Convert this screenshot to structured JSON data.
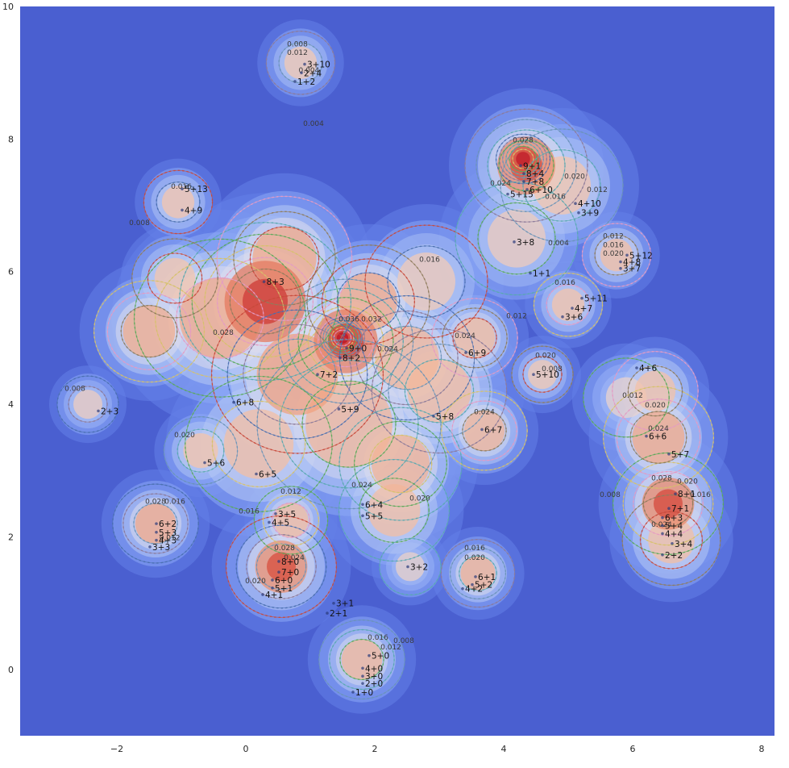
{
  "chart_data": {
    "type": "contour",
    "title": "",
    "xlabel": "",
    "ylabel": "",
    "xlim": [
      -3.5,
      8.2
    ],
    "ylim": [
      -1.0,
      10.0
    ],
    "grid": false,
    "legend": "none",
    "colormap": "coolwarm",
    "x_ticks": [
      "−2",
      "0",
      "2",
      "4",
      "6",
      "8"
    ],
    "x_tick_values": [
      -2,
      0,
      2,
      4,
      6,
      8
    ],
    "y_ticks": [
      "0",
      "2",
      "4",
      "6",
      "8",
      "10"
    ],
    "y_tick_values": [
      0,
      2,
      4,
      6,
      8,
      10
    ],
    "contour_levels": [
      "0.004",
      "0.008",
      "0.012",
      "0.016",
      "0.020",
      "0.024",
      "0.028",
      "0.032",
      "0.036"
    ],
    "level_colors": [
      "#8c7a9a",
      "#6a94b8",
      "#59a9b0",
      "#5aaa5a",
      "#d6c26a",
      "#e49bc4",
      "#8f7c5d",
      "#c84a3c",
      "#4a6fb0"
    ],
    "colors": {
      "background": "#4a5fd0",
      "low": "#6f8ff0",
      "mid": "#dcdcec",
      "high": "#f0a080",
      "peak": "#c01828"
    },
    "level_labels": [
      {
        "text": "0.004",
        "x": 1.05,
        "y": 8.2
      },
      {
        "text": "0.004",
        "x": 0.98,
        "y": 9.0
      },
      {
        "text": "0.008",
        "x": 0.8,
        "y": 9.4
      },
      {
        "text": "0.012",
        "x": 0.8,
        "y": 9.27
      },
      {
        "text": "0.008",
        "x": -1.65,
        "y": 6.7
      },
      {
        "text": "0.016",
        "x": -1.0,
        "y": 7.25
      },
      {
        "text": "0.028",
        "x": -0.35,
        "y": 5.05
      },
      {
        "text": "0.036",
        "x": 1.6,
        "y": 5.25
      },
      {
        "text": "0.032",
        "x": 1.95,
        "y": 5.25
      },
      {
        "text": "0.024",
        "x": 2.2,
        "y": 4.8
      },
      {
        "text": "0.016",
        "x": 2.85,
        "y": 6.15
      },
      {
        "text": "0.024",
        "x": 3.4,
        "y": 5.0
      },
      {
        "text": "0.008",
        "x": -2.65,
        "y": 4.2
      },
      {
        "text": "0.020",
        "x": -0.95,
        "y": 3.5
      },
      {
        "text": "0.024",
        "x": 1.8,
        "y": 2.75
      },
      {
        "text": "0.020",
        "x": 2.7,
        "y": 2.55
      },
      {
        "text": "0.012",
        "x": 0.7,
        "y": 2.65
      },
      {
        "text": "0.016",
        "x": 0.05,
        "y": 2.35
      },
      {
        "text": "0.028",
        "x": -1.4,
        "y": 2.5
      },
      {
        "text": "0.016",
        "x": -1.1,
        "y": 2.5
      },
      {
        "text": "0.012",
        "x": -1.18,
        "y": 1.95
      },
      {
        "text": "0.028",
        "x": 0.6,
        "y": 1.8
      },
      {
        "text": "0.024",
        "x": 0.75,
        "y": 1.65
      },
      {
        "text": "0.020",
        "x": 0.15,
        "y": 1.3
      },
      {
        "text": "0.016",
        "x": 3.55,
        "y": 1.8
      },
      {
        "text": "0.020",
        "x": 3.55,
        "y": 1.65
      },
      {
        "text": "0.016",
        "x": 2.05,
        "y": 0.45
      },
      {
        "text": "0.012",
        "x": 2.25,
        "y": 0.3
      },
      {
        "text": "0.008",
        "x": 2.45,
        "y": 0.4
      },
      {
        "text": "0.028",
        "x": 4.3,
        "y": 7.95
      },
      {
        "text": "0.024",
        "x": 3.95,
        "y": 7.3
      },
      {
        "text": "0.016",
        "x": 4.8,
        "y": 7.1
      },
      {
        "text": "0.020",
        "x": 5.1,
        "y": 7.4
      },
      {
        "text": "0.012",
        "x": 5.45,
        "y": 7.2
      },
      {
        "text": "0.004",
        "x": 4.85,
        "y": 6.4
      },
      {
        "text": "0.012",
        "x": 5.7,
        "y": 6.5
      },
      {
        "text": "0.016",
        "x": 5.7,
        "y": 6.37
      },
      {
        "text": "0.020",
        "x": 5.7,
        "y": 6.24
      },
      {
        "text": "0.016",
        "x": 4.95,
        "y": 5.8
      },
      {
        "text": "0.012",
        "x": 4.2,
        "y": 5.3
      },
      {
        "text": "0.008",
        "x": 4.75,
        "y": 4.5
      },
      {
        "text": "0.020",
        "x": 4.65,
        "y": 4.7
      },
      {
        "text": "0.012",
        "x": 6.0,
        "y": 4.1
      },
      {
        "text": "0.020",
        "x": 6.35,
        "y": 3.95
      },
      {
        "text": "0.024",
        "x": 6.4,
        "y": 3.6
      },
      {
        "text": "0.028",
        "x": 6.45,
        "y": 2.85
      },
      {
        "text": "0.020",
        "x": 6.85,
        "y": 2.8
      },
      {
        "text": "0.016",
        "x": 7.05,
        "y": 2.6
      },
      {
        "text": "0.008",
        "x": 5.65,
        "y": 2.6
      },
      {
        "text": "0.024",
        "x": 6.45,
        "y": 2.15
      },
      {
        "text": "0.024",
        "x": 3.7,
        "y": 3.85
      }
    ],
    "points": [
      {
        "label": "3+10",
        "x": 0.95,
        "y": 9.08
      },
      {
        "label": "2+4",
        "x": 0.9,
        "y": 8.95
      },
      {
        "label": "1+2",
        "x": 0.8,
        "y": 8.82
      },
      {
        "label": "5+13",
        "x": -0.95,
        "y": 7.2
      },
      {
        "label": "4+9",
        "x": -0.95,
        "y": 6.88
      },
      {
        "label": "8+3",
        "x": 0.32,
        "y": 5.8
      },
      {
        "label": "9+0",
        "x": 1.6,
        "y": 4.8
      },
      {
        "label": "8+2",
        "x": 1.5,
        "y": 4.65
      },
      {
        "label": "7+2",
        "x": 1.15,
        "y": 4.4
      },
      {
        "label": "6+8",
        "x": -0.15,
        "y": 3.98
      },
      {
        "label": "5+9",
        "x": 1.48,
        "y": 3.88
      },
      {
        "label": "5+8",
        "x": 2.95,
        "y": 3.77
      },
      {
        "label": "6+9",
        "x": 3.45,
        "y": 4.73
      },
      {
        "label": "6+7",
        "x": 3.7,
        "y": 3.57
      },
      {
        "label": "5+10",
        "x": 4.5,
        "y": 4.4
      },
      {
        "label": "2+3",
        "x": -2.25,
        "y": 3.85
      },
      {
        "label": "5+6",
        "x": -0.6,
        "y": 3.07
      },
      {
        "label": "6+5",
        "x": 0.2,
        "y": 2.9
      },
      {
        "label": "3+5",
        "x": 0.5,
        "y": 2.3
      },
      {
        "label": "4+5",
        "x": 0.4,
        "y": 2.17
      },
      {
        "label": "6+4",
        "x": 1.85,
        "y": 2.44
      },
      {
        "label": "5+5",
        "x": 1.85,
        "y": 2.27
      },
      {
        "label": "6+2",
        "x": -1.35,
        "y": 2.15
      },
      {
        "label": "5+3",
        "x": -1.35,
        "y": 2.02
      },
      {
        "label": "4+3",
        "x": -1.35,
        "y": 1.9
      },
      {
        "label": "3+3",
        "x": -1.45,
        "y": 1.8
      },
      {
        "label": "8+0",
        "x": 0.55,
        "y": 1.58
      },
      {
        "label": "7+0",
        "x": 0.55,
        "y": 1.42
      },
      {
        "label": "6+0",
        "x": 0.45,
        "y": 1.3
      },
      {
        "label": "5+1",
        "x": 0.45,
        "y": 1.18
      },
      {
        "label": "4+1",
        "x": 0.3,
        "y": 1.08
      },
      {
        "label": "3+2",
        "x": 2.55,
        "y": 1.5
      },
      {
        "label": "6+1",
        "x": 3.6,
        "y": 1.35
      },
      {
        "label": "5+2",
        "x": 3.55,
        "y": 1.23
      },
      {
        "label": "4+2",
        "x": 3.4,
        "y": 1.17
      },
      {
        "label": "3+1",
        "x": 1.4,
        "y": 0.95
      },
      {
        "label": "2+1",
        "x": 1.3,
        "y": 0.8
      },
      {
        "label": "5+0",
        "x": 1.95,
        "y": 0.16
      },
      {
        "label": "4+0",
        "x": 1.85,
        "y": -0.03
      },
      {
        "label": "3+0",
        "x": 1.85,
        "y": -0.15
      },
      {
        "label": "2+0",
        "x": 1.85,
        "y": -0.26
      },
      {
        "label": "1+0",
        "x": 1.7,
        "y": -0.39
      },
      {
        "label": "9+1",
        "x": 4.3,
        "y": 7.55
      },
      {
        "label": "8+4",
        "x": 4.35,
        "y": 7.43
      },
      {
        "label": "7+8",
        "x": 4.35,
        "y": 7.31
      },
      {
        "label": "6+10",
        "x": 4.4,
        "y": 7.19
      },
      {
        "label": "5+15",
        "x": 4.1,
        "y": 7.12
      },
      {
        "label": "4+10",
        "x": 5.15,
        "y": 6.98
      },
      {
        "label": "3+9",
        "x": 5.2,
        "y": 6.84
      },
      {
        "label": "3+8",
        "x": 4.2,
        "y": 6.4
      },
      {
        "label": "1+1",
        "x": 4.45,
        "y": 5.93
      },
      {
        "label": "5+12",
        "x": 5.95,
        "y": 6.2
      },
      {
        "label": "4+8",
        "x": 5.85,
        "y": 6.1
      },
      {
        "label": "3+7",
        "x": 5.85,
        "y": 6.0
      },
      {
        "label": "5+11",
        "x": 5.25,
        "y": 5.55
      },
      {
        "label": "4+7",
        "x": 5.1,
        "y": 5.4
      },
      {
        "label": "3+6",
        "x": 4.95,
        "y": 5.27
      },
      {
        "label": "4+6",
        "x": 6.1,
        "y": 4.5
      },
      {
        "label": "6+6",
        "x": 6.25,
        "y": 3.47
      },
      {
        "label": "5+7",
        "x": 6.6,
        "y": 3.2
      },
      {
        "label": "8+1",
        "x": 6.7,
        "y": 2.6
      },
      {
        "label": "7+1",
        "x": 6.6,
        "y": 2.38
      },
      {
        "label": "6+3",
        "x": 6.5,
        "y": 2.24
      },
      {
        "label": "5+4",
        "x": 6.5,
        "y": 2.12
      },
      {
        "label": "4+4",
        "x": 6.5,
        "y": 2.0
      },
      {
        "label": "3+4",
        "x": 6.65,
        "y": 1.85
      },
      {
        "label": "2+2",
        "x": 6.5,
        "y": 1.68
      }
    ],
    "density_peaks": [
      {
        "x": 1.5,
        "y": 5.0,
        "h": 1.0,
        "r": 0.18
      },
      {
        "x": 1.55,
        "y": 4.95,
        "h": 0.75,
        "r": 0.55
      },
      {
        "x": 0.3,
        "y": 5.55,
        "h": 0.78,
        "r": 0.7
      },
      {
        "x": -0.4,
        "y": 5.3,
        "h": 0.55,
        "r": 0.7
      },
      {
        "x": -1.5,
        "y": 5.1,
        "h": 0.52,
        "r": 0.45
      },
      {
        "x": 0.6,
        "y": 6.2,
        "h": 0.55,
        "r": 0.55
      },
      {
        "x": 1.9,
        "y": 5.55,
        "h": 0.55,
        "r": 0.5
      },
      {
        "x": 0.8,
        "y": 4.45,
        "h": 0.6,
        "r": 0.7
      },
      {
        "x": 2.5,
        "y": 4.7,
        "h": 0.45,
        "r": 0.55
      },
      {
        "x": 3.0,
        "y": 4.2,
        "h": 0.42,
        "r": 0.55
      },
      {
        "x": 1.6,
        "y": 3.7,
        "h": 0.45,
        "r": 0.75
      },
      {
        "x": 2.4,
        "y": 3.1,
        "h": 0.48,
        "r": 0.5
      },
      {
        "x": 0.2,
        "y": 3.4,
        "h": 0.4,
        "r": 0.6
      },
      {
        "x": 3.7,
        "y": 3.6,
        "h": 0.46,
        "r": 0.35
      },
      {
        "x": 3.55,
        "y": 5.0,
        "h": 0.42,
        "r": 0.35
      },
      {
        "x": -1.1,
        "y": 5.9,
        "h": 0.35,
        "r": 0.35
      },
      {
        "x": 2.8,
        "y": 5.85,
        "h": 0.3,
        "r": 0.5
      },
      {
        "x": 4.3,
        "y": 7.7,
        "h": 0.95,
        "r": 0.22
      },
      {
        "x": 4.35,
        "y": 7.6,
        "h": 0.7,
        "r": 0.5
      },
      {
        "x": 4.9,
        "y": 7.3,
        "h": 0.35,
        "r": 0.5
      },
      {
        "x": 4.2,
        "y": 6.5,
        "h": 0.28,
        "r": 0.5
      },
      {
        "x": 6.55,
        "y": 2.5,
        "h": 0.7,
        "r": 0.45
      },
      {
        "x": 6.4,
        "y": 3.5,
        "h": 0.55,
        "r": 0.45
      },
      {
        "x": 6.35,
        "y": 4.2,
        "h": 0.38,
        "r": 0.35
      },
      {
        "x": 6.6,
        "y": 1.95,
        "h": 0.4,
        "r": 0.4
      },
      {
        "x": 0.55,
        "y": 1.55,
        "h": 0.68,
        "r": 0.45
      },
      {
        "x": -1.4,
        "y": 2.2,
        "h": 0.55,
        "r": 0.35
      },
      {
        "x": 3.6,
        "y": 1.45,
        "h": 0.48,
        "r": 0.3
      },
      {
        "x": 1.8,
        "y": 0.15,
        "h": 0.45,
        "r": 0.35
      },
      {
        "x": 2.3,
        "y": 2.4,
        "h": 0.4,
        "r": 0.45
      },
      {
        "x": 0.7,
        "y": 2.25,
        "h": 0.42,
        "r": 0.3
      },
      {
        "x": 5.0,
        "y": 5.5,
        "h": 0.36,
        "r": 0.28
      },
      {
        "x": 5.75,
        "y": 6.25,
        "h": 0.4,
        "r": 0.28
      },
      {
        "x": 4.6,
        "y": 4.45,
        "h": 0.32,
        "r": 0.25
      },
      {
        "x": -1.05,
        "y": 7.05,
        "h": 0.35,
        "r": 0.28
      },
      {
        "x": -2.45,
        "y": 4.0,
        "h": 0.26,
        "r": 0.25
      },
      {
        "x": 0.85,
        "y": 9.15,
        "h": 0.32,
        "r": 0.28
      },
      {
        "x": -0.7,
        "y": 3.3,
        "h": 0.36,
        "r": 0.3
      },
      {
        "x": 2.55,
        "y": 1.55,
        "h": 0.22,
        "r": 0.25
      },
      {
        "x": 5.9,
        "y": 4.1,
        "h": 0.2,
        "r": 0.35
      }
    ]
  }
}
